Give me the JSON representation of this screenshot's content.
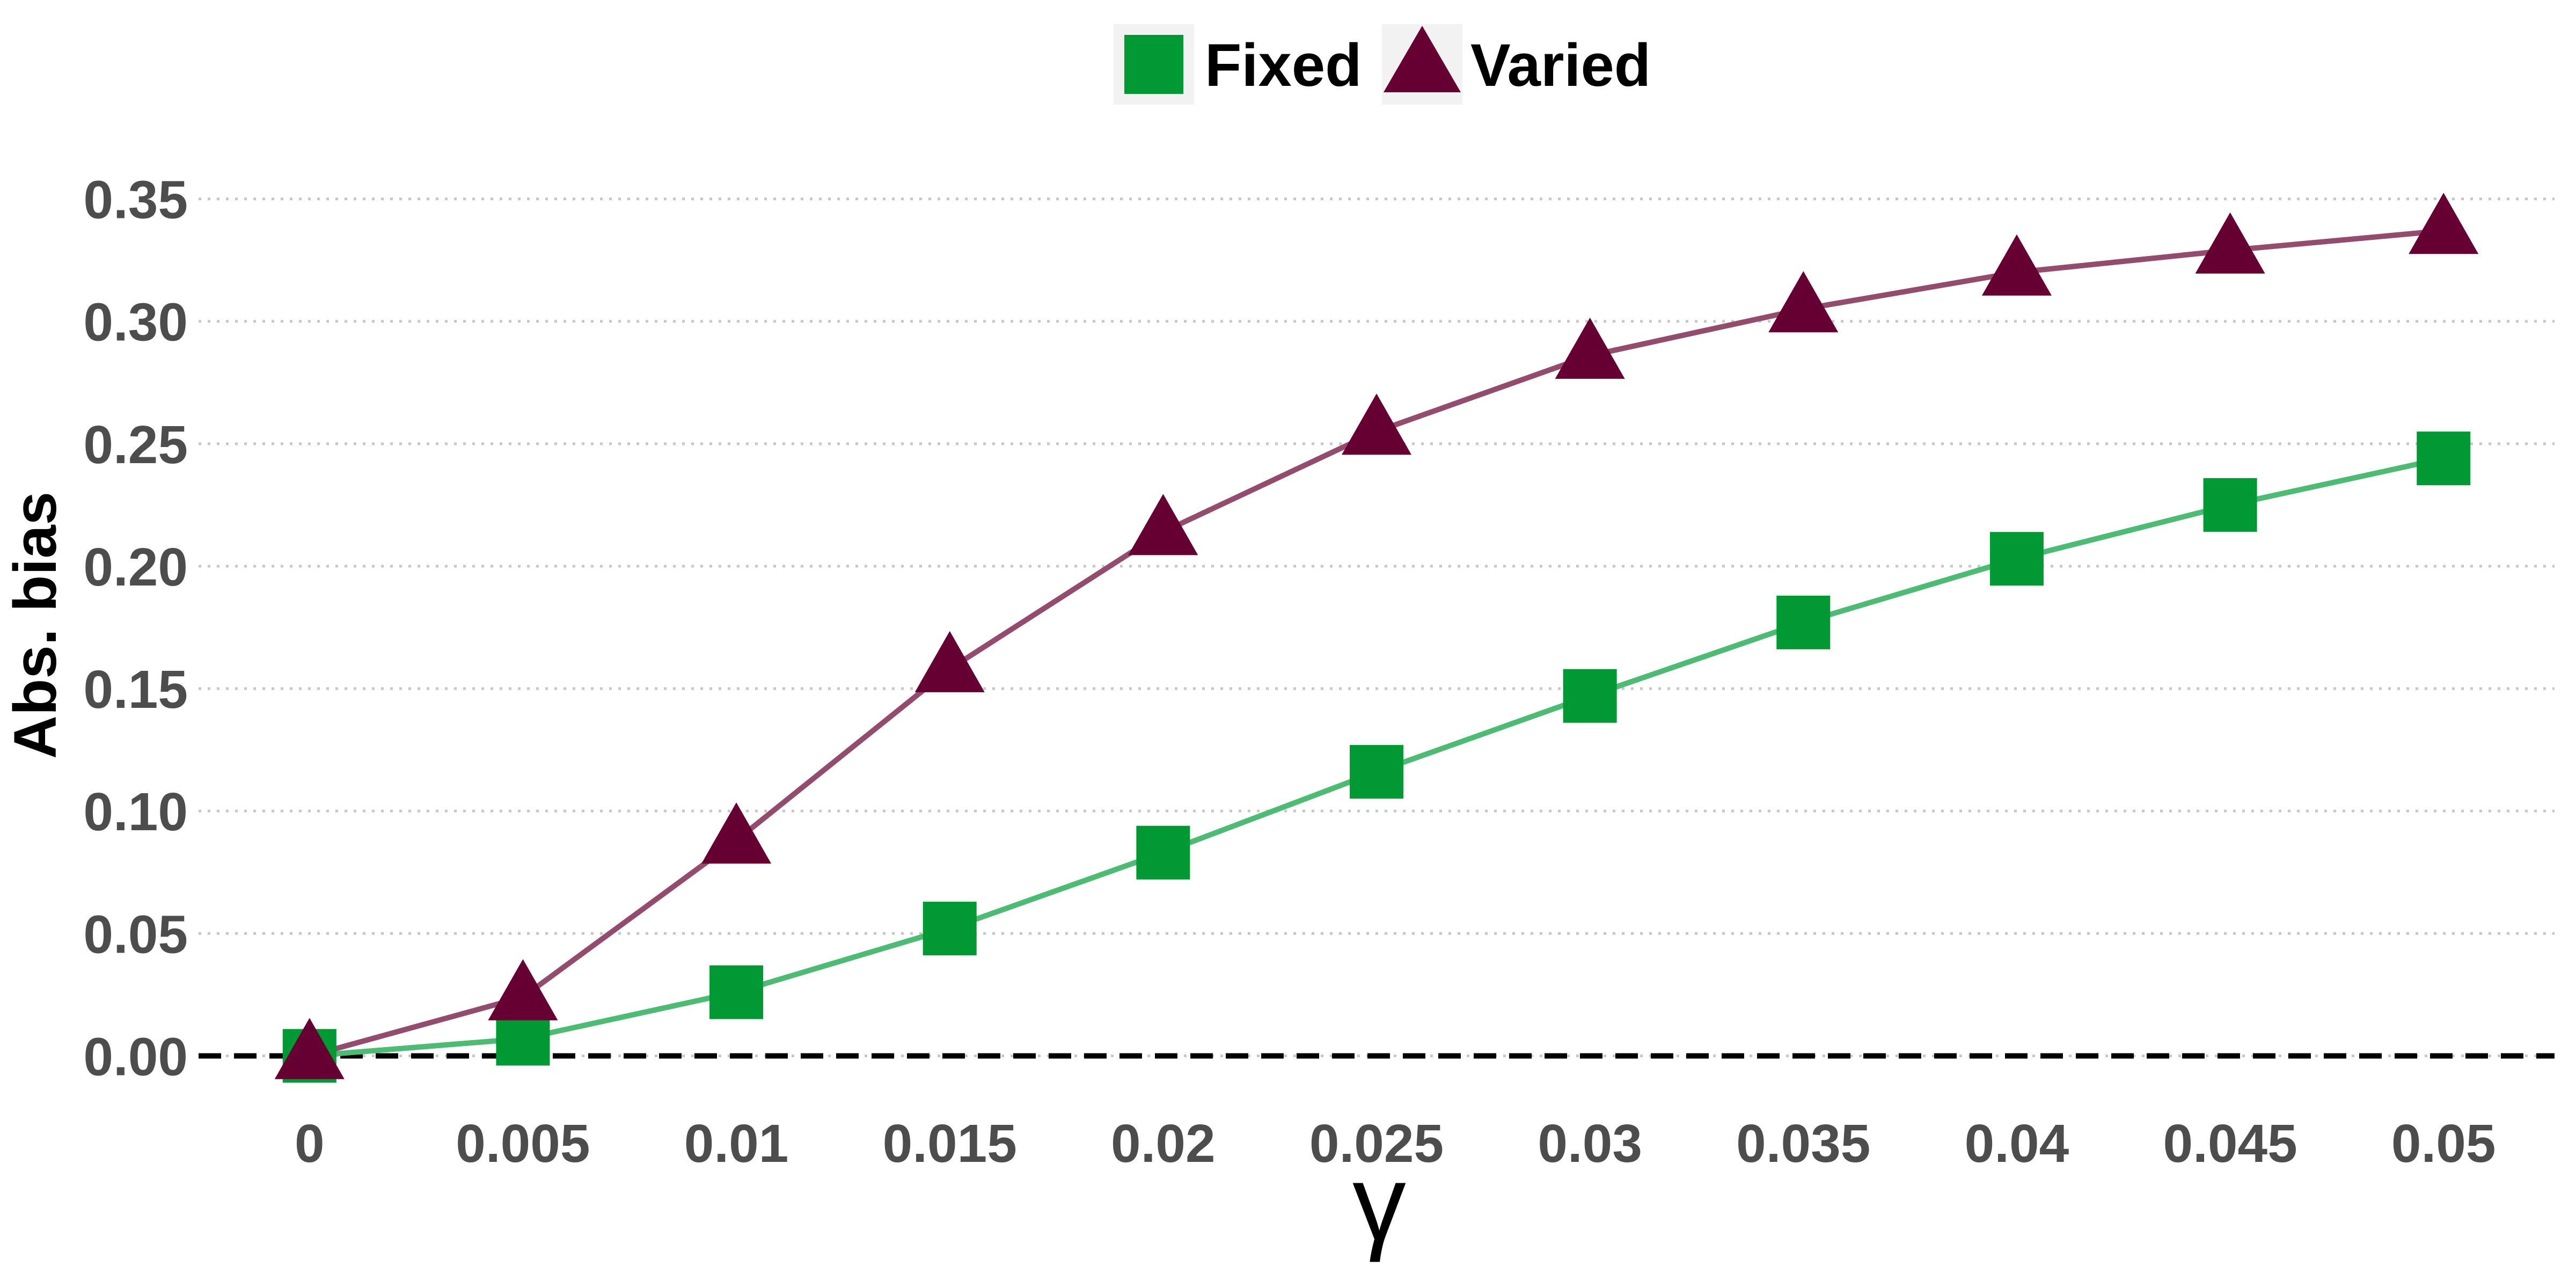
{
  "chart_data": {
    "type": "line",
    "title": "",
    "xlabel": "γ",
    "ylabel": "Abs. bias",
    "x": [
      0,
      0.005,
      0.01,
      0.015,
      0.02,
      0.025,
      0.03,
      0.035,
      0.04,
      0.045,
      0.05
    ],
    "x_tick_labels": [
      "0",
      "0.005",
      "0.01",
      "0.015",
      "0.02",
      "0.025",
      "0.03",
      "0.035",
      "0.04",
      "0.045",
      "0.05"
    ],
    "y_ticks": [
      0,
      0.05,
      0.1,
      0.15,
      0.2,
      0.25,
      0.3,
      0.35
    ],
    "y_tick_labels": [
      "0.00",
      "0.05",
      "0.10",
      "0.15",
      "0.20",
      "0.25",
      "0.30",
      "0.35"
    ],
    "xlim": [
      -0.0026,
      0.0526
    ],
    "ylim": [
      -0.017,
      0.367
    ],
    "grid": "horizontal-dotted",
    "reference_line": {
      "y": 0,
      "style": "dashed",
      "color": "#000000"
    },
    "legend": {
      "position": "top-center"
    },
    "series": [
      {
        "name": "Fixed",
        "marker": "square",
        "marker_color": "#009933",
        "line_color": "#4dbb73",
        "values": [
          0.0,
          0.007,
          0.026,
          0.052,
          0.083,
          0.116,
          0.147,
          0.177,
          0.203,
          0.225,
          0.244
        ]
      },
      {
        "name": "Varied",
        "marker": "triangle",
        "marker_color": "#660033",
        "line_color": "#944c6e",
        "values": [
          0.0,
          0.024,
          0.088,
          0.158,
          0.214,
          0.255,
          0.286,
          0.305,
          0.32,
          0.329,
          0.337
        ]
      }
    ]
  }
}
